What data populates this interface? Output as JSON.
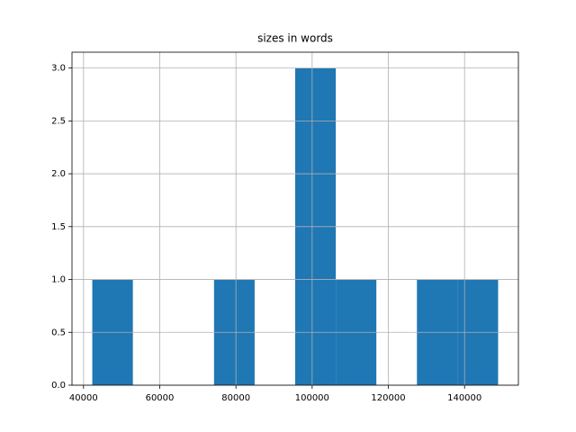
{
  "chart_data": {
    "type": "histogram",
    "title": "sizes in words",
    "bins": [
      42300,
      52950,
      63600,
      74250,
      84900,
      95550,
      106200,
      116850,
      127500,
      138150,
      148800
    ],
    "values": [
      1,
      0,
      0,
      1,
      0,
      3,
      1,
      0,
      1,
      1
    ],
    "color": "#1f77b4",
    "xlim": [
      36975,
      154125
    ],
    "xticks": [
      40000,
      60000,
      80000,
      100000,
      120000,
      140000
    ],
    "ylim": [
      0,
      3.15
    ],
    "yticks": [
      {
        "value": 0,
        "label": "0.0"
      },
      {
        "value": 0.5,
        "label": "0.5"
      },
      {
        "value": 1,
        "label": "1.0"
      },
      {
        "value": 1.5,
        "label": "1.5"
      },
      {
        "value": 2,
        "label": "2.0"
      },
      {
        "value": 2.5,
        "label": "2.5"
      },
      {
        "value": 3,
        "label": "3.0"
      }
    ],
    "grid": true
  }
}
